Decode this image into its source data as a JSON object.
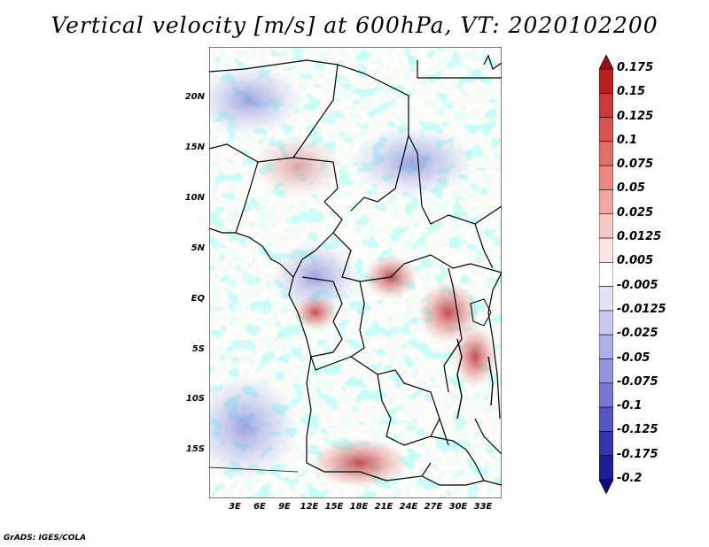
{
  "title": "Vertical velocity [m/s] at 600hPa, VT: 2020102200",
  "map": {
    "y_labels": [
      "20N",
      "15N",
      "10N",
      "5N",
      "EQ",
      "5S",
      "10S",
      "15S"
    ],
    "x_labels": [
      "3E",
      "6E",
      "9E",
      "12E",
      "15E",
      "18E",
      "21E",
      "24E",
      "27E",
      "30E",
      "33E"
    ]
  },
  "colorbar": {
    "labels": [
      "0.175",
      "0.15",
      "0.125",
      "0.1",
      "0.075",
      "0.05",
      "0.025",
      "0.0125",
      "0.005",
      "-0.005",
      "-0.0125",
      "-0.025",
      "-0.05",
      "-0.075",
      "-0.1",
      "-0.125",
      "-0.175",
      "-0.2"
    ],
    "colors": [
      "#9b0f14",
      "#b81e22",
      "#cc3a38",
      "#d9534f",
      "#e06f68",
      "#e88a82",
      "#f0a8a2",
      "#f6c9c4",
      "#fbe6e3",
      "#ffffff",
      "#e2e2f7",
      "#c9c9f0",
      "#aeaee8",
      "#9494de",
      "#7878d2",
      "#5656c2",
      "#3535ae",
      "#1e1e9a",
      "#0c0c80"
    ]
  },
  "credit": "GrADS: IGES/COLA"
}
